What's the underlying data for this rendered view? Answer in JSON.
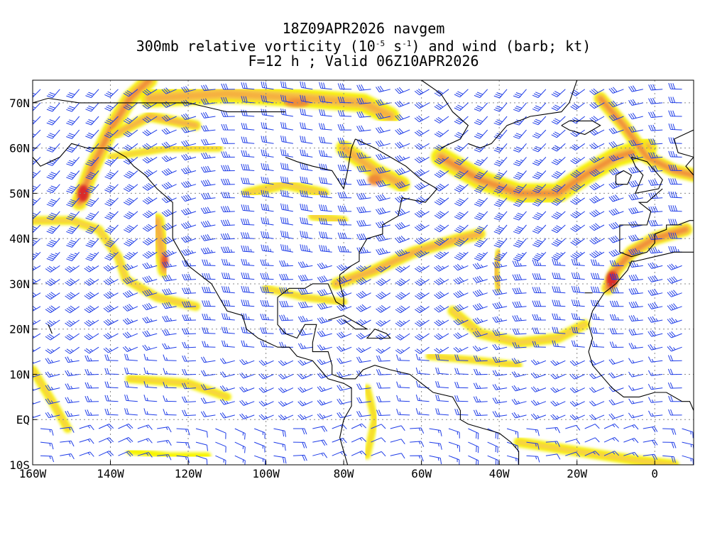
{
  "header": {
    "line1": "18Z09APR2026 navgem",
    "line2_a": "300mb relative vorticity (10",
    "line2_exp1": "-5",
    "line2_b": " s",
    "line2_exp2": "-1",
    "line2_c": ") and wind (barb; kt)",
    "line3": "F=12 h ; Valid 06Z10APR2026"
  },
  "axes": {
    "lat_labels": [
      "70N",
      "60N",
      "50N",
      "40N",
      "30N",
      "20N",
      "10N",
      "EQ",
      "10S"
    ],
    "lon_labels": [
      "160W",
      "140W",
      "120W",
      "100W",
      "80W",
      "60W",
      "40W",
      "20W",
      "0"
    ],
    "lat_values": [
      70,
      60,
      50,
      40,
      30,
      20,
      10,
      0,
      -10
    ],
    "lon_values": [
      -160,
      -140,
      -120,
      -100,
      -80,
      -60,
      -40,
      -20,
      0
    ],
    "lon_range": [
      -160,
      10
    ],
    "lat_range": [
      -10,
      75
    ],
    "grid": true
  },
  "colors": {
    "vort_levels": [
      "#f7f400",
      "#f7d048",
      "#f5b040",
      "#ef8a38",
      "#e6582e",
      "#d92a2a"
    ],
    "barbs": "#1e3ce8",
    "coast": "#000000",
    "grid": "#888888"
  }
}
